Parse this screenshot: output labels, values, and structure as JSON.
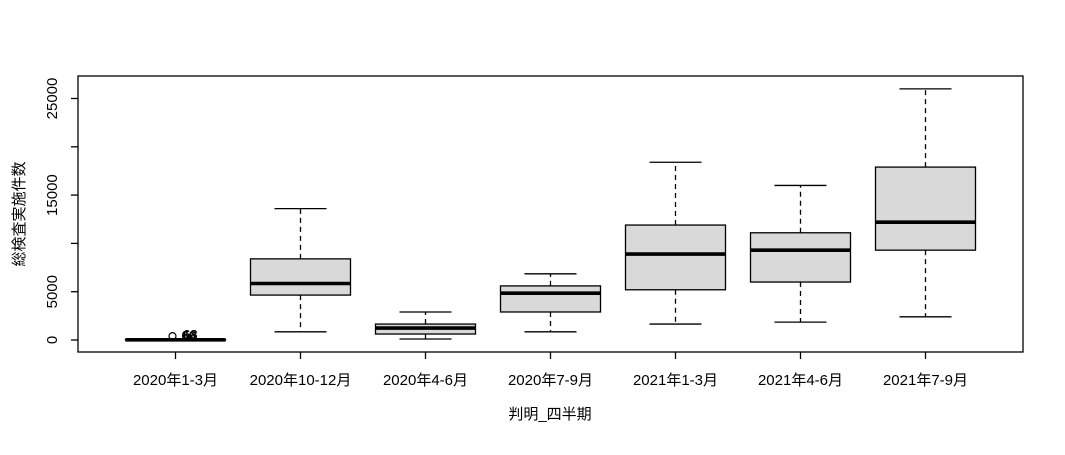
{
  "chart_data": {
    "type": "boxplot",
    "title": "",
    "xlabel": "判明_四半期",
    "ylabel": "総検査実施件数",
    "ylim": [
      0,
      26500
    ],
    "yticks": [
      0,
      5000,
      10000,
      15000,
      20000,
      25000
    ],
    "ytick_labels": [
      "0",
      "5000",
      "",
      "15000",
      "",
      "25000"
    ],
    "categories": [
      "2020年1-3月",
      "2020年10-12月",
      "2020年4-6月",
      "2020年7-9月",
      "2021年1-3月",
      "2021年4-6月",
      "2021年7-9月"
    ],
    "boxes": [
      {
        "category": "2020年1-3月",
        "lower_whisker": 0,
        "q1": 0,
        "median": 20,
        "q3": 50,
        "upper_whisker": 120,
        "outliers": [
          {
            "value": 400,
            "labels": [
              "66",
              "68"
            ]
          }
        ]
      },
      {
        "category": "2020年10-12月",
        "lower_whisker": 850,
        "q1": 4650,
        "median": 5850,
        "q3": 8400,
        "upper_whisker": 13600,
        "outliers": []
      },
      {
        "category": "2020年4-6月",
        "lower_whisker": 100,
        "q1": 620,
        "median": 1240,
        "q3": 1650,
        "upper_whisker": 2900,
        "outliers": []
      },
      {
        "category": "2020年7-9月",
        "lower_whisker": 850,
        "q1": 2900,
        "median": 4850,
        "q3": 5600,
        "upper_whisker": 6850,
        "outliers": []
      },
      {
        "category": "2021年1-3月",
        "lower_whisker": 1650,
        "q1": 5200,
        "median": 8900,
        "q3": 11900,
        "upper_whisker": 18400,
        "outliers": []
      },
      {
        "category": "2021年4-6月",
        "lower_whisker": 1850,
        "q1": 6000,
        "median": 9300,
        "q3": 11100,
        "upper_whisker": 16000,
        "outliers": []
      },
      {
        "category": "2021年7-9月",
        "lower_whisker": 2400,
        "q1": 9300,
        "median": 12200,
        "q3": 17900,
        "upper_whisker": 26000,
        "outliers": []
      }
    ],
    "layout": {
      "grid": false,
      "legend": "none",
      "box_orientation": "vertical"
    },
    "colors": {
      "box_fill": "#d9d9d9",
      "line": "#000000",
      "background": "#ffffff"
    }
  }
}
